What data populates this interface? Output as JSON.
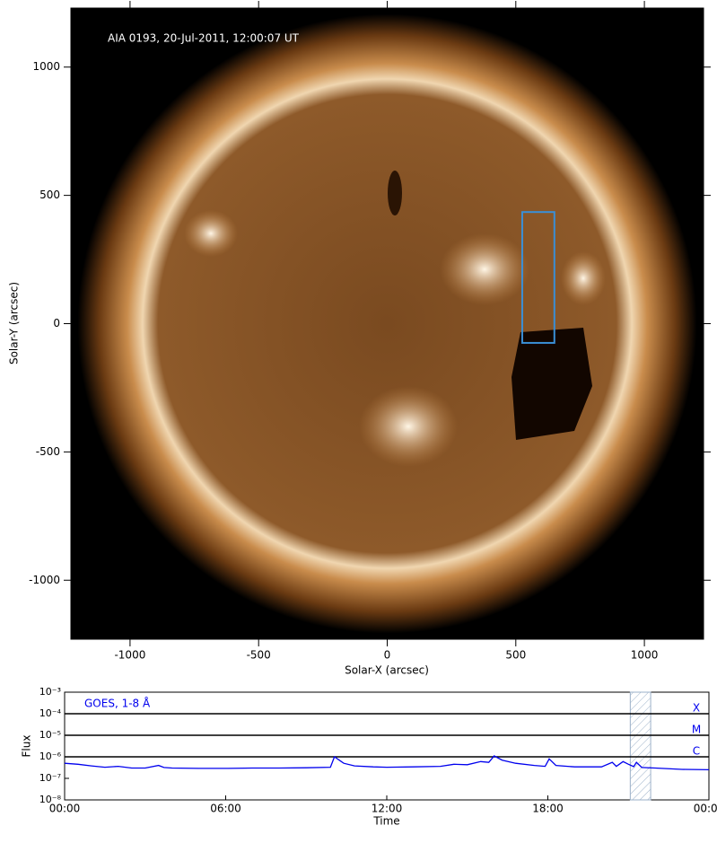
{
  "chart_data": [
    {
      "type": "image",
      "title": "AIA 0193, 20-Jul-2011, 12:00:07 UT",
      "xlabel": "Solar-X (arcsec)",
      "ylabel": "Solar-Y (arcsec)",
      "xlim": [
        -1230,
        1230
      ],
      "ylim": [
        -1230,
        1230
      ],
      "xticks": [
        -1000,
        -500,
        0,
        500,
        1000
      ],
      "yticks": [
        -1000,
        -500,
        0,
        500,
        1000
      ],
      "box": {
        "x": [
          525,
          650
        ],
        "y": [
          -75,
          435
        ],
        "color": "#3a8fd6"
      }
    },
    {
      "type": "line",
      "xlabel": "Time",
      "ylabel": "Flux",
      "log_y": true,
      "xlim": [
        0,
        24
      ],
      "xticks": [
        {
          "value": 0,
          "label": "00:00"
        },
        {
          "value": 6,
          "label": "06:00"
        },
        {
          "value": 12,
          "label": "12:00"
        },
        {
          "value": 18,
          "label": "18:00"
        },
        {
          "value": 24,
          "label": "00:00"
        }
      ],
      "ylim": [
        1e-08,
        0.001
      ],
      "yticks": [
        {
          "value": 1e-08,
          "label": "10⁻⁸"
        },
        {
          "value": 1e-07,
          "label": "10⁻⁷"
        },
        {
          "value": 1e-06,
          "label": "10⁻⁶"
        },
        {
          "value": 1e-05,
          "label": "10⁻⁵"
        },
        {
          "value": 0.0001,
          "label": "10⁻⁴"
        },
        {
          "value": 0.001,
          "label": "10⁻³"
        }
      ],
      "flare_classes": [
        {
          "label": "X",
          "value": 0.0001
        },
        {
          "label": "M",
          "value": 1e-05
        },
        {
          "label": "C",
          "value": 1e-06
        }
      ],
      "highlight": [
        21.07,
        21.83
      ],
      "series": [
        {
          "name": "GOES, 1-8 Å",
          "color": "#0000ee",
          "x": [
            0,
            0.5,
            1,
            1.5,
            2,
            2.5,
            3,
            3.5,
            3.7,
            4,
            5,
            6,
            7,
            8,
            9,
            9.9,
            10.05,
            10.4,
            10.8,
            11.5,
            12,
            13,
            14,
            14.5,
            15,
            15.5,
            15.8,
            16,
            16.3,
            16.8,
            17.5,
            17.9,
            18.05,
            18.3,
            19,
            20,
            20.4,
            20.55,
            20.8,
            21,
            21.2,
            21.3,
            21.5,
            22,
            23,
            24
          ],
          "values": [
            5e-07,
            4.5e-07,
            3.8e-07,
            3.3e-07,
            3.6e-07,
            3e-07,
            3e-07,
            4e-07,
            3.2e-07,
            3e-07,
            2.9e-07,
            2.9e-07,
            3e-07,
            3e-07,
            3.1e-07,
            3.3e-07,
            1e-06,
            5e-07,
            3.8e-07,
            3.4e-07,
            3.3e-07,
            3.4e-07,
            3.6e-07,
            4.5e-07,
            4.3e-07,
            6e-07,
            5.5e-07,
            1.1e-06,
            7e-07,
            5e-07,
            4e-07,
            3.6e-07,
            8e-07,
            4e-07,
            3.4e-07,
            3.4e-07,
            5.5e-07,
            3.6e-07,
            6e-07,
            4.5e-07,
            3.5e-07,
            5.5e-07,
            3.2e-07,
            3e-07,
            2.6e-07,
            2.5e-07
          ]
        }
      ]
    }
  ]
}
